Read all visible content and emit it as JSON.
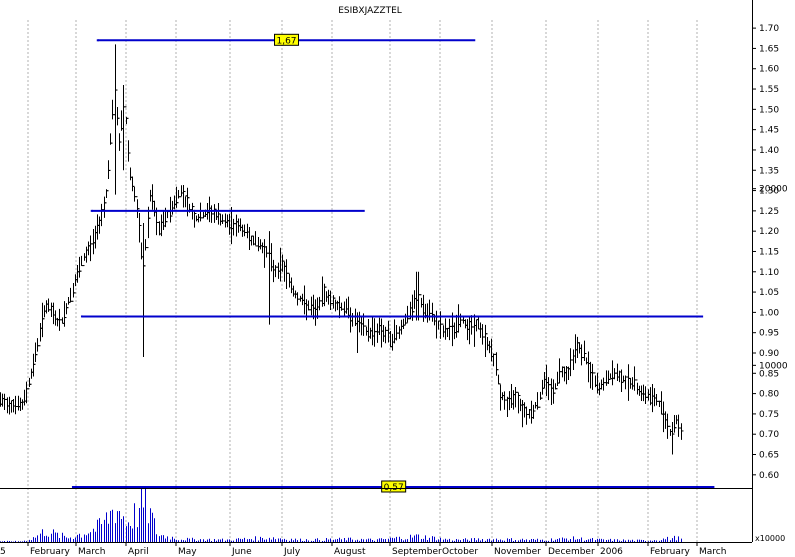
{
  "chart_data": {
    "type": "ohlc_bar",
    "title": "ESIBXJAZZTEL",
    "price_axis": {
      "ylim": [
        0.57,
        1.72
      ],
      "ticks": [
        "0.60",
        "0.65",
        "0.70",
        "0.75",
        "0.80",
        "0.85",
        "0.90",
        "0.95",
        "1.00",
        "1.05",
        "1.10",
        "1.15",
        "1.20",
        "1.25",
        "1.30",
        "1.35",
        "1.40",
        "1.45",
        "1.50",
        "1.55",
        "1.60",
        "1.65",
        "1.70"
      ]
    },
    "volume_axis": {
      "ylim": [
        0,
        30000000
      ],
      "ticks": [
        "10000",
        "20000"
      ],
      "multiplier_label": "x10000"
    },
    "x_labels": [
      "5",
      "February",
      "March",
      "April",
      "May",
      "June",
      "July",
      "August",
      "September",
      "October",
      "November",
      "December",
      "2006",
      "February",
      "March"
    ],
    "horizontal_levels": [
      {
        "value": 1.67,
        "label": "1,67",
        "start": 0.13,
        "end": 0.632
      },
      {
        "value": 1.25,
        "label": "",
        "start": 0.122,
        "end": 0.485
      },
      {
        "value": 0.99,
        "label": "",
        "start": 0.109,
        "end": 0.935
      },
      {
        "value": 0.57,
        "label": "0,57",
        "start": 0.097,
        "end": 0.95
      }
    ],
    "price_path": [
      [
        0.0,
        0.78
      ],
      [
        0.03,
        0.77
      ],
      [
        0.045,
        0.88
      ],
      [
        0.06,
        1.02
      ],
      [
        0.08,
        0.97
      ],
      [
        0.095,
        1.05
      ],
      [
        0.11,
        1.13
      ],
      [
        0.125,
        1.18
      ],
      [
        0.14,
        1.28
      ],
      [
        0.152,
        1.55
      ],
      [
        0.158,
        1.42
      ],
      [
        0.165,
        1.52
      ],
      [
        0.172,
        1.35
      ],
      [
        0.18,
        1.28
      ],
      [
        0.19,
        1.1
      ],
      [
        0.2,
        1.3
      ],
      [
        0.21,
        1.2
      ],
      [
        0.225,
        1.25
      ],
      [
        0.24,
        1.3
      ],
      [
        0.26,
        1.23
      ],
      [
        0.28,
        1.25
      ],
      [
        0.3,
        1.22
      ],
      [
        0.32,
        1.21
      ],
      [
        0.335,
        1.18
      ],
      [
        0.355,
        1.15
      ],
      [
        0.365,
        1.1
      ],
      [
        0.375,
        1.12
      ],
      [
        0.39,
        1.05
      ],
      [
        0.405,
        1.02
      ],
      [
        0.42,
        1.0
      ],
      [
        0.43,
        1.05
      ],
      [
        0.445,
        1.02
      ],
      [
        0.46,
        1.01
      ],
      [
        0.475,
        0.97
      ],
      [
        0.49,
        0.95
      ],
      [
        0.505,
        0.96
      ],
      [
        0.52,
        0.93
      ],
      [
        0.535,
        0.97
      ],
      [
        0.545,
        1.0
      ],
      [
        0.555,
        1.04
      ],
      [
        0.565,
        1.0
      ],
      [
        0.575,
        0.99
      ],
      [
        0.59,
        0.95
      ],
      [
        0.605,
        0.96
      ],
      [
        0.615,
        0.98
      ],
      [
        0.625,
        0.96
      ],
      [
        0.635,
        0.97
      ],
      [
        0.645,
        0.93
      ],
      [
        0.655,
        0.9
      ],
      [
        0.665,
        0.8
      ],
      [
        0.675,
        0.77
      ],
      [
        0.685,
        0.8
      ],
      [
        0.695,
        0.76
      ],
      [
        0.705,
        0.75
      ],
      [
        0.715,
        0.78
      ],
      [
        0.725,
        0.84
      ],
      [
        0.735,
        0.8
      ],
      [
        0.745,
        0.86
      ],
      [
        0.755,
        0.85
      ],
      [
        0.765,
        0.92
      ],
      [
        0.775,
        0.9
      ],
      [
        0.785,
        0.85
      ],
      [
        0.795,
        0.81
      ],
      [
        0.805,
        0.83
      ],
      [
        0.815,
        0.85
      ],
      [
        0.825,
        0.84
      ],
      [
        0.835,
        0.83
      ],
      [
        0.845,
        0.82
      ],
      [
        0.855,
        0.8
      ],
      [
        0.865,
        0.79
      ],
      [
        0.875,
        0.78
      ],
      [
        0.885,
        0.74
      ],
      [
        0.893,
        0.69
      ],
      [
        0.898,
        0.74
      ],
      [
        0.905,
        0.71
      ]
    ],
    "price_spikes": [
      {
        "t": 0.152,
        "low": 1.29,
        "high": 1.66
      },
      {
        "t": 0.163,
        "low": 1.35,
        "high": 1.56
      },
      {
        "t": 0.19,
        "low": 0.89,
        "high": 1.22
      },
      {
        "t": 0.357,
        "low": 0.97,
        "high": 1.2
      },
      {
        "t": 0.475,
        "low": 0.9,
        "high": 1.0
      },
      {
        "t": 0.555,
        "low": 0.98,
        "high": 1.1
      },
      {
        "t": 0.61,
        "low": 0.95,
        "high": 1.02
      },
      {
        "t": 0.894,
        "low": 0.65,
        "high": 0.73
      }
    ],
    "volume_path": [
      [
        0.0,
        0.5
      ],
      [
        0.03,
        0.5
      ],
      [
        0.045,
        3
      ],
      [
        0.06,
        8
      ],
      [
        0.075,
        5
      ],
      [
        0.09,
        3
      ],
      [
        0.11,
        6
      ],
      [
        0.13,
        10
      ],
      [
        0.145,
        18
      ],
      [
        0.152,
        26
      ],
      [
        0.16,
        20
      ],
      [
        0.17,
        14
      ],
      [
        0.185,
        22
      ],
      [
        0.193,
        28
      ],
      [
        0.2,
        18
      ],
      [
        0.21,
        5
      ],
      [
        0.24,
        2
      ],
      [
        0.3,
        1.5
      ],
      [
        0.36,
        3
      ],
      [
        0.4,
        1.5
      ],
      [
        0.46,
        2
      ],
      [
        0.5,
        1.5
      ],
      [
        0.555,
        4
      ],
      [
        0.6,
        1.5
      ],
      [
        0.65,
        2
      ],
      [
        0.72,
        1.5
      ],
      [
        0.76,
        2.5
      ],
      [
        0.8,
        1.5
      ],
      [
        0.86,
        1
      ],
      [
        0.9,
        3
      ],
      [
        0.91,
        1
      ]
    ],
    "colors": {
      "bars": "#000000",
      "levels": "#0000cc",
      "volume": "#0000cc",
      "label_bg": "#ffff00",
      "grid": "#b0b0b0"
    }
  }
}
